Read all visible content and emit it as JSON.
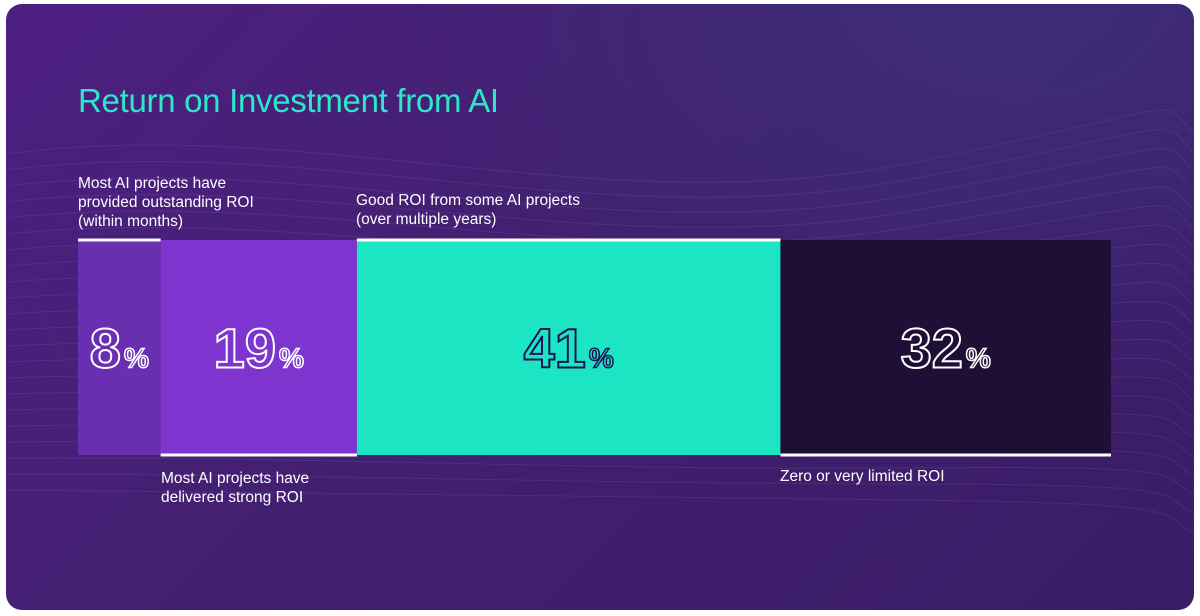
{
  "title": "Return on Investment from AI",
  "colors": {
    "title": "#2ee6c8",
    "background": "#46207a",
    "segments": [
      "#6a2fb0",
      "#7e35cf",
      "#1ce5c4",
      "#1f0f37"
    ]
  },
  "chart_data": {
    "type": "bar",
    "orientation": "horizontal-stacked",
    "title": "Return on Investment from AI",
    "unit": "%",
    "categories": [
      "Most AI projects have provided outstanding ROI (within months)",
      "Most AI projects have delivered strong ROI",
      "Good ROI from some AI projects (over multiple years)",
      "Zero or very limited ROI"
    ],
    "values": [
      8,
      19,
      41,
      32
    ],
    "value_labels": [
      "8",
      "19",
      "41",
      "32"
    ],
    "percent_sign": "%",
    "label_positions": [
      "top",
      "bottom",
      "top",
      "bottom"
    ]
  }
}
